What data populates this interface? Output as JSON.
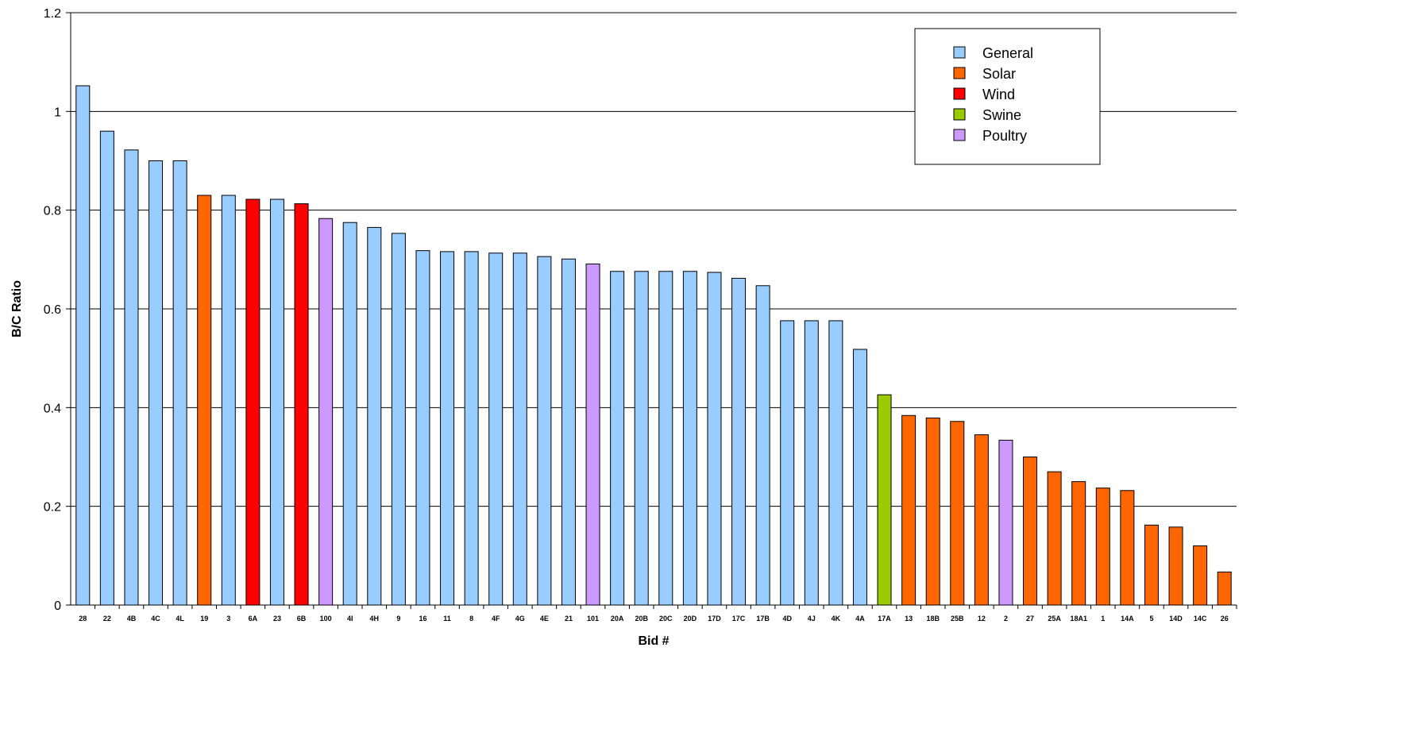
{
  "chart_data": {
    "type": "bar",
    "title": "",
    "xlabel": "Bid #",
    "ylabel": "B/C Ratio",
    "ylim": [
      0,
      1.2
    ],
    "yticks": [
      0,
      0.2,
      0.4,
      0.6,
      0.8,
      1,
      1.2
    ],
    "ytick_labels": [
      "0",
      "0.2",
      "0.4",
      "0.6",
      "0.8",
      "1",
      "1.2"
    ],
    "grid": true,
    "legend_position": "top-right",
    "legend": [
      {
        "name": "General",
        "color": "#99ccff"
      },
      {
        "name": "Solar",
        "color": "#ff6600"
      },
      {
        "name": "Wind",
        "color": "#ff0000"
      },
      {
        "name": "Swine",
        "color": "#99cc00"
      },
      {
        "name": "Poultry",
        "color": "#cc99ff"
      }
    ],
    "categories": [
      "28",
      "22",
      "4B",
      "4C",
      "4L",
      "19",
      "3",
      "6A",
      "23",
      "6B",
      "100",
      "4I",
      "4H",
      "9",
      "16",
      "11",
      "8",
      "4F",
      "4G",
      "4E",
      "21",
      "101",
      "20A",
      "20B",
      "20C",
      "20D",
      "17D",
      "17C",
      "17B",
      "4D",
      "4J",
      "4K",
      "4A",
      "17A",
      "13",
      "18B",
      "25B",
      "12",
      "2",
      "27",
      "25A",
      "18A1",
      "1",
      "14A",
      "5",
      "14D",
      "14C",
      "26"
    ],
    "values": [
      1.052,
      0.96,
      0.922,
      0.9,
      0.9,
      0.83,
      0.83,
      0.822,
      0.822,
      0.813,
      0.783,
      0.775,
      0.765,
      0.753,
      0.718,
      0.716,
      0.716,
      0.713,
      0.713,
      0.706,
      0.701,
      0.691,
      0.676,
      0.676,
      0.676,
      0.676,
      0.674,
      0.662,
      0.647,
      0.576,
      0.576,
      0.576,
      0.518,
      0.426,
      0.384,
      0.379,
      0.372,
      0.345,
      0.334,
      0.3,
      0.27,
      0.25,
      0.237,
      0.232,
      0.162,
      0.158,
      0.12,
      0.067
    ],
    "series_type": [
      "General",
      "General",
      "General",
      "General",
      "General",
      "Solar",
      "General",
      "Wind",
      "General",
      "Wind",
      "Poultry",
      "General",
      "General",
      "General",
      "General",
      "General",
      "General",
      "General",
      "General",
      "General",
      "General",
      "Poultry",
      "General",
      "General",
      "General",
      "General",
      "General",
      "General",
      "General",
      "General",
      "General",
      "General",
      "General",
      "Swine",
      "Solar",
      "Solar",
      "Solar",
      "Solar",
      "Poultry",
      "Solar",
      "Solar",
      "Solar",
      "Solar",
      "Solar",
      "Solar",
      "Solar",
      "Solar",
      "Solar"
    ]
  }
}
